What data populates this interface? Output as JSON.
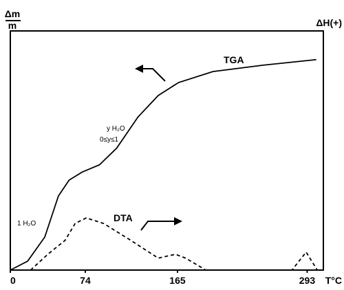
{
  "chart_data": {
    "type": "line",
    "y_label_numerator": "Δm",
    "y_label_denominator": "m",
    "y2_label": "ΔH(+)",
    "x_label": "T°C",
    "xlim": [
      0,
      309
    ],
    "ylim": [
      0,
      100
    ],
    "xticks": [
      0,
      74,
      165,
      293
    ],
    "annotations": [
      "y H₂O",
      "0≤y≤1",
      "1 H₂O"
    ],
    "series": [
      {
        "name": "TGA",
        "color": "#000000",
        "dash": false,
        "x": [
          0,
          17,
          34,
          47.5,
          58,
          71,
          88,
          105,
          126,
          146,
          166,
          200,
          248,
          302
        ],
        "values": [
          0,
          3.7,
          13.8,
          31,
          37.6,
          41,
          44,
          51,
          64,
          73,
          78.4,
          83,
          85.6,
          88
        ]
      },
      {
        "name": "DTA",
        "color": "#000000",
        "dash": true,
        "x": [
          20,
          37,
          54,
          64,
          75,
          92,
          119,
          146,
          163,
          173,
          193,
          278,
          292,
          303
        ],
        "values": [
          0,
          6.6,
          12.4,
          19.5,
          21.8,
          19.5,
          12.4,
          5,
          6.6,
          5,
          0,
          0,
          7.5,
          0
        ]
      }
    ]
  }
}
